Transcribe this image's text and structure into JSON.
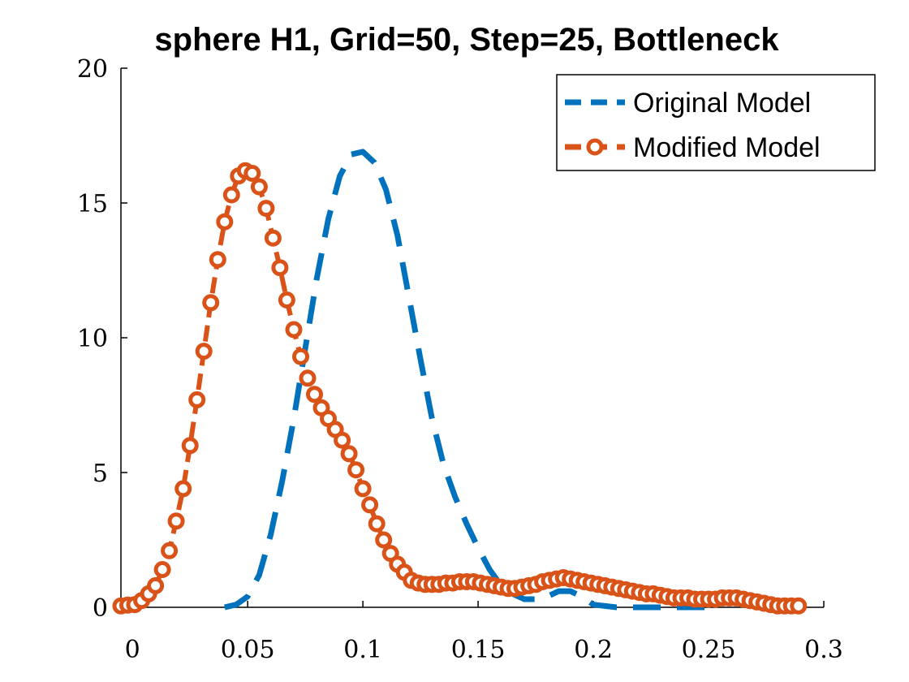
{
  "chart_data": {
    "type": "line",
    "title": "sphere H1, Grid=50, Step=25, Bottleneck",
    "xlabel": "",
    "ylabel": "",
    "xlim": [
      -0.005,
      0.3
    ],
    "ylim": [
      0,
      20
    ],
    "x_ticks": [
      "0",
      "0.05",
      "0.1",
      "0.15",
      "0.2",
      "0.25",
      "0.3"
    ],
    "y_ticks": [
      "0",
      "5",
      "10",
      "15",
      "20"
    ],
    "grid": false,
    "legend_position": "top-right",
    "series": [
      {
        "name": "Original Model",
        "color": "#0072BD",
        "style": "dashed",
        "x": [
          0.04,
          0.045,
          0.05,
          0.055,
          0.06,
          0.065,
          0.07,
          0.075,
          0.08,
          0.085,
          0.09,
          0.095,
          0.1,
          0.105,
          0.11,
          0.115,
          0.12,
          0.125,
          0.13,
          0.135,
          0.14,
          0.145,
          0.15,
          0.155,
          0.16,
          0.165,
          0.17,
          0.175,
          0.18,
          0.185,
          0.19,
          0.195,
          0.2,
          0.21,
          0.22,
          0.23,
          0.24,
          0.25
        ],
        "y": [
          0,
          0.1,
          0.4,
          1.2,
          2.7,
          4.7,
          7.0,
          9.6,
          12.2,
          14.4,
          16.0,
          16.8,
          16.9,
          16.5,
          15.5,
          13.8,
          11.5,
          9.2,
          7.0,
          5.3,
          4.1,
          3.1,
          2.2,
          1.4,
          0.8,
          0.5,
          0.3,
          0.3,
          0.4,
          0.6,
          0.6,
          0.4,
          0.1,
          0,
          0,
          0,
          0,
          0
        ]
      },
      {
        "name": "Modified Model",
        "color": "#D95319",
        "style": "dashed-circle",
        "x": [
          -0.005,
          -0.002,
          0.001,
          0.004,
          0.007,
          0.01,
          0.013,
          0.016,
          0.019,
          0.022,
          0.025,
          0.028,
          0.031,
          0.034,
          0.037,
          0.04,
          0.043,
          0.046,
          0.049,
          0.052,
          0.055,
          0.058,
          0.061,
          0.064,
          0.067,
          0.07,
          0.073,
          0.076,
          0.079,
          0.082,
          0.085,
          0.088,
          0.091,
          0.094,
          0.097,
          0.1,
          0.103,
          0.106,
          0.109,
          0.112,
          0.115,
          0.118,
          0.121,
          0.124,
          0.127,
          0.13,
          0.133,
          0.136,
          0.139,
          0.142,
          0.145,
          0.148,
          0.151,
          0.154,
          0.157,
          0.16,
          0.163,
          0.166,
          0.169,
          0.172,
          0.175,
          0.178,
          0.181,
          0.184,
          0.187,
          0.19,
          0.193,
          0.196,
          0.199,
          0.202,
          0.205,
          0.208,
          0.211,
          0.214,
          0.217,
          0.22,
          0.223,
          0.226,
          0.229,
          0.232,
          0.235,
          0.238,
          0.241,
          0.244,
          0.247,
          0.25,
          0.253,
          0.256,
          0.259,
          0.262,
          0.265,
          0.268,
          0.271,
          0.274,
          0.277,
          0.28,
          0.283,
          0.286,
          0.289
        ],
        "y": [
          0.05,
          0.08,
          0.1,
          0.25,
          0.5,
          0.8,
          1.4,
          2.1,
          3.2,
          4.4,
          6.0,
          7.7,
          9.5,
          11.3,
          12.9,
          14.3,
          15.3,
          16.0,
          16.2,
          16.1,
          15.6,
          14.8,
          13.7,
          12.6,
          11.4,
          10.3,
          9.3,
          8.5,
          7.9,
          7.4,
          7.0,
          6.6,
          6.2,
          5.7,
          5.1,
          4.4,
          3.8,
          3.1,
          2.5,
          2.0,
          1.6,
          1.3,
          1.0,
          0.9,
          0.85,
          0.85,
          0.85,
          0.9,
          0.9,
          0.95,
          0.95,
          0.95,
          0.9,
          0.85,
          0.8,
          0.75,
          0.7,
          0.7,
          0.75,
          0.8,
          0.85,
          0.95,
          1.0,
          1.05,
          1.1,
          1.05,
          1.0,
          0.95,
          0.9,
          0.85,
          0.8,
          0.75,
          0.7,
          0.65,
          0.6,
          0.55,
          0.5,
          0.5,
          0.45,
          0.4,
          0.35,
          0.35,
          0.35,
          0.3,
          0.3,
          0.3,
          0.3,
          0.35,
          0.35,
          0.35,
          0.3,
          0.25,
          0.2,
          0.15,
          0.1,
          0.05,
          0.05,
          0.05,
          0.05
        ]
      }
    ]
  }
}
